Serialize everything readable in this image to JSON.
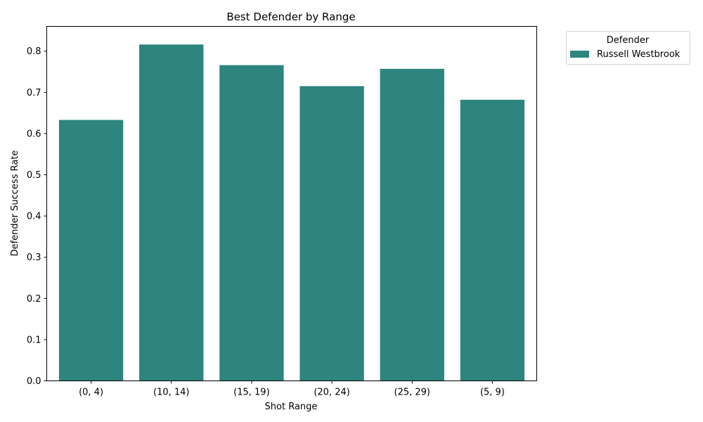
{
  "chart_data": {
    "type": "bar",
    "title": "Best Defender by Range",
    "xlabel": "Shot Range",
    "ylabel": "Defender Success Rate",
    "categories": [
      "(0, 4)",
      "(10, 14)",
      "(15, 19)",
      "(20, 24)",
      "(25, 29)",
      "(5, 9)"
    ],
    "series": [
      {
        "name": "Russell Westbrook",
        "values": [
          0.633,
          0.816,
          0.766,
          0.715,
          0.757,
          0.682
        ],
        "color": "#2e847f"
      }
    ],
    "ylim": [
      0,
      0.86
    ],
    "yticks": [
      0.0,
      0.1,
      0.2,
      0.3,
      0.4,
      0.5,
      0.6,
      0.7,
      0.8
    ],
    "ytick_labels": [
      "0.0",
      "0.1",
      "0.2",
      "0.3",
      "0.4",
      "0.5",
      "0.6",
      "0.7",
      "0.8"
    ],
    "grid": false,
    "legend": {
      "title": "Defender",
      "placement": "outside-upper-right"
    }
  }
}
